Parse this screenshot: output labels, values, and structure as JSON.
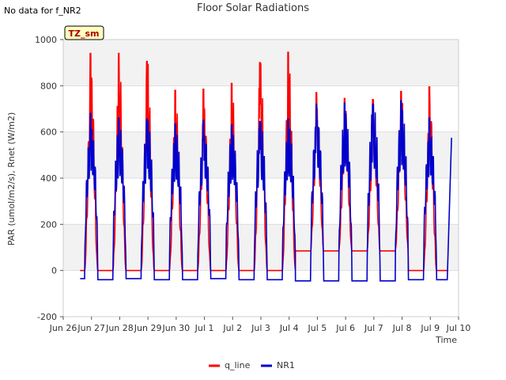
{
  "top_note": "No data for f_NR2",
  "chart_data": {
    "type": "line",
    "title": "Floor Solar Radiations",
    "xlabel": "Time",
    "ylabel": "PAR (umol/m2/s), Rnet (W/m2)",
    "ylim": [
      -200,
      1000
    ],
    "xlim": [
      0,
      14
    ],
    "grid": true,
    "legend_position": "bottom-center",
    "yticks": [
      -200,
      0,
      200,
      400,
      600,
      800,
      1000
    ],
    "xtick_labels": [
      "Jun 26",
      "Jun 27",
      "Jun 28",
      "Jun 29",
      "Jun 30",
      "Jul 1",
      "Jul 2",
      "Jul 3",
      "Jul 4",
      "Jul 5",
      "Jul 6",
      "Jul 7",
      "Jul 8",
      "Jul 9",
      "Jul 10"
    ],
    "annotation": "TZ_sm",
    "series": [
      {
        "name": "q_line",
        "color": "#ff0000",
        "daily_peaks": [
          940,
          940,
          905,
          780,
          785,
          810,
          900,
          945,
          770,
          745,
          740,
          775,
          795
        ],
        "night_values": [
          0,
          0,
          0,
          0,
          0,
          0,
          0,
          0,
          85,
          85,
          85,
          85,
          0
        ]
      },
      {
        "name": "NR1",
        "color": "#0000cc",
        "daily_peaks": [
          680,
          660,
          655,
          635,
          650,
          630,
          645,
          655,
          720,
          725,
          720,
          735,
          660
        ],
        "night_values": [
          -35,
          -40,
          -35,
          -40,
          -40,
          -35,
          -40,
          -40,
          -45,
          -45,
          -45,
          -45,
          -40
        ],
        "final_value": 575
      }
    ]
  }
}
